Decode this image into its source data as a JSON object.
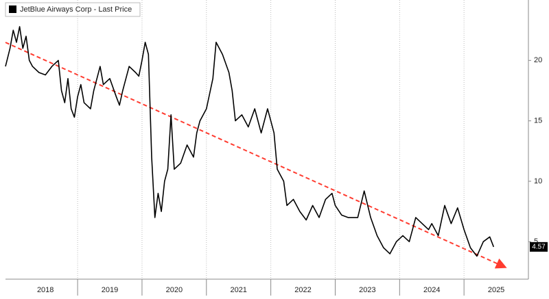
{
  "chart_data": {
    "type": "line",
    "legend": "JetBlue Airways Corp - Last Price",
    "x": [
      2017.88,
      2017.95,
      2018.0,
      2018.05,
      2018.1,
      2018.15,
      2018.2,
      2018.25,
      2018.3,
      2018.4,
      2018.5,
      2018.6,
      2018.7,
      2018.75,
      2018.8,
      2018.85,
      2018.9,
      2018.95,
      2019.0,
      2019.05,
      2019.1,
      2019.2,
      2019.25,
      2019.35,
      2019.4,
      2019.5,
      2019.6,
      2019.65,
      2019.7,
      2019.8,
      2019.9,
      2019.95,
      2020.0,
      2020.05,
      2020.1,
      2020.15,
      2020.2,
      2020.25,
      2020.3,
      2020.35,
      2020.4,
      2020.45,
      2020.5,
      2020.6,
      2020.7,
      2020.8,
      2020.85,
      2020.9,
      2021.0,
      2021.1,
      2021.15,
      2021.25,
      2021.35,
      2021.4,
      2021.45,
      2021.55,
      2021.65,
      2021.75,
      2021.85,
      2021.95,
      2022.0,
      2022.05,
      2022.1,
      2022.2,
      2022.25,
      2022.35,
      2022.45,
      2022.55,
      2022.65,
      2022.75,
      2022.85,
      2022.95,
      2023.0,
      2023.1,
      2023.2,
      2023.35,
      2023.45,
      2023.55,
      2023.65,
      2023.75,
      2023.85,
      2023.95,
      2024.05,
      2024.15,
      2024.25,
      2024.35,
      2024.45,
      2024.5,
      2024.6,
      2024.7,
      2024.8,
      2024.9,
      2025.0,
      2025.1,
      2025.2,
      2025.3,
      2025.4,
      2025.46
    ],
    "series": [
      {
        "name": "JetBlue Airways Corp - Last Price",
        "color": "#000000",
        "values": [
          19.5,
          21,
          22.5,
          21.5,
          22.8,
          21,
          22,
          20,
          19.5,
          19,
          18.8,
          19.5,
          20,
          17.5,
          16.5,
          18.5,
          16,
          15.3,
          17,
          18,
          16.5,
          16,
          17.5,
          19.5,
          18,
          18.5,
          17,
          16.3,
          17.5,
          19.5,
          19,
          18.7,
          20,
          21.5,
          20.5,
          12,
          7,
          9,
          7.5,
          10,
          11,
          15.5,
          11,
          11.5,
          13,
          12,
          14,
          15,
          16,
          18.5,
          21.5,
          20.5,
          19,
          17.5,
          15,
          15.5,
          14.5,
          16,
          14,
          16,
          15,
          14,
          11,
          10,
          8,
          8.5,
          7.5,
          6.8,
          8,
          7,
          8.5,
          9,
          8,
          7.2,
          7,
          7,
          9.2,
          7,
          5.5,
          4.5,
          4,
          5,
          5.5,
          5,
          7,
          6.5,
          6,
          6.5,
          5.5,
          8,
          6.5,
          7.8,
          6,
          4.5,
          3.8,
          5,
          5.4,
          4.57
        ]
      }
    ],
    "last_price": "4.57",
    "xlim": [
      2017.88,
      2026.0
    ],
    "xticks": [
      {
        "value": 2018.5,
        "label": "2018"
      },
      {
        "value": 2019.5,
        "label": "2019"
      },
      {
        "value": 2020.5,
        "label": "2020"
      },
      {
        "value": 2021.5,
        "label": "2021"
      },
      {
        "value": 2022.5,
        "label": "2022"
      },
      {
        "value": 2023.5,
        "label": "2023"
      },
      {
        "value": 2024.5,
        "label": "2024"
      },
      {
        "value": 2025.5,
        "label": "2025"
      }
    ],
    "ylim": [
      1.9,
      25.0
    ],
    "yticks": [
      5,
      10,
      15,
      20
    ],
    "grid": true
  }
}
